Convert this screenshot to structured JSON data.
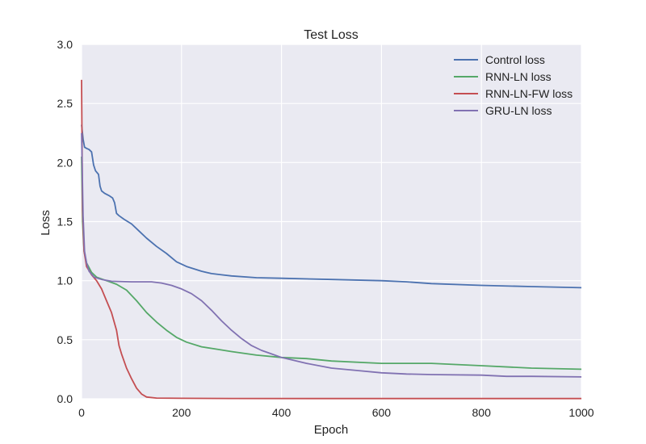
{
  "chart_data": {
    "type": "line",
    "title": "Test Loss",
    "xlabel": "Epoch",
    "ylabel": "Loss",
    "xlim": [
      0,
      1000
    ],
    "ylim": [
      0,
      3.0
    ],
    "xticks": [
      "0",
      "200",
      "400",
      "600",
      "800",
      "1000"
    ],
    "yticks": [
      "0.0",
      "0.5",
      "1.0",
      "1.5",
      "2.0",
      "2.5",
      "3.0"
    ],
    "grid": true,
    "legend_position": "top-right",
    "background": "#eaeaf2",
    "series": [
      {
        "name": "Control loss",
        "color": "#4c72b0",
        "points": [
          [
            0,
            2.32
          ],
          [
            3,
            2.2
          ],
          [
            6,
            2.13
          ],
          [
            10,
            2.12
          ],
          [
            15,
            2.11
          ],
          [
            20,
            2.09
          ],
          [
            24,
            1.98
          ],
          [
            28,
            1.93
          ],
          [
            34,
            1.9
          ],
          [
            37,
            1.8
          ],
          [
            40,
            1.76
          ],
          [
            46,
            1.74
          ],
          [
            55,
            1.72
          ],
          [
            62,
            1.7
          ],
          [
            66,
            1.66
          ],
          [
            70,
            1.57
          ],
          [
            75,
            1.55
          ],
          [
            85,
            1.52
          ],
          [
            100,
            1.48
          ],
          [
            115,
            1.42
          ],
          [
            130,
            1.36
          ],
          [
            150,
            1.29
          ],
          [
            170,
            1.23
          ],
          [
            190,
            1.16
          ],
          [
            210,
            1.12
          ],
          [
            240,
            1.08
          ],
          [
            260,
            1.06
          ],
          [
            280,
            1.05
          ],
          [
            300,
            1.04
          ],
          [
            350,
            1.025
          ],
          [
            400,
            1.02
          ],
          [
            500,
            1.01
          ],
          [
            600,
            1.0
          ],
          [
            650,
            0.99
          ],
          [
            700,
            0.975
          ],
          [
            800,
            0.96
          ],
          [
            900,
            0.95
          ],
          [
            1000,
            0.94
          ]
        ]
      },
      {
        "name": "RNN-LN loss",
        "color": "#55a868",
        "points": [
          [
            0,
            2.05
          ],
          [
            2,
            1.5
          ],
          [
            5,
            1.25
          ],
          [
            10,
            1.15
          ],
          [
            20,
            1.07
          ],
          [
            30,
            1.03
          ],
          [
            50,
            1.0
          ],
          [
            70,
            0.97
          ],
          [
            90,
            0.92
          ],
          [
            110,
            0.83
          ],
          [
            130,
            0.73
          ],
          [
            150,
            0.65
          ],
          [
            170,
            0.58
          ],
          [
            190,
            0.52
          ],
          [
            210,
            0.48
          ],
          [
            240,
            0.44
          ],
          [
            270,
            0.42
          ],
          [
            300,
            0.4
          ],
          [
            350,
            0.37
          ],
          [
            400,
            0.35
          ],
          [
            450,
            0.34
          ],
          [
            500,
            0.32
          ],
          [
            600,
            0.3
          ],
          [
            700,
            0.3
          ],
          [
            800,
            0.28
          ],
          [
            900,
            0.26
          ],
          [
            1000,
            0.25
          ]
        ]
      },
      {
        "name": "RNN-LN-FW loss",
        "color": "#c44e52",
        "points": [
          [
            0,
            2.7
          ],
          [
            2,
            1.6
          ],
          [
            5,
            1.25
          ],
          [
            10,
            1.12
          ],
          [
            20,
            1.05
          ],
          [
            30,
            1.0
          ],
          [
            40,
            0.93
          ],
          [
            50,
            0.83
          ],
          [
            60,
            0.73
          ],
          [
            70,
            0.58
          ],
          [
            75,
            0.45
          ],
          [
            80,
            0.38
          ],
          [
            90,
            0.26
          ],
          [
            100,
            0.17
          ],
          [
            110,
            0.09
          ],
          [
            120,
            0.04
          ],
          [
            130,
            0.015
          ],
          [
            150,
            0.006
          ],
          [
            200,
            0.004
          ],
          [
            300,
            0.003
          ],
          [
            500,
            0.002
          ],
          [
            1000,
            0.002
          ]
        ]
      },
      {
        "name": "GRU-LN loss",
        "color": "#8172b2",
        "points": [
          [
            0,
            2.25
          ],
          [
            3,
            1.55
          ],
          [
            6,
            1.25
          ],
          [
            10,
            1.15
          ],
          [
            15,
            1.08
          ],
          [
            25,
            1.03
          ],
          [
            40,
            1.01
          ],
          [
            60,
            0.995
          ],
          [
            100,
            0.99
          ],
          [
            140,
            0.99
          ],
          [
            160,
            0.98
          ],
          [
            180,
            0.96
          ],
          [
            200,
            0.93
          ],
          [
            220,
            0.89
          ],
          [
            240,
            0.83
          ],
          [
            260,
            0.75
          ],
          [
            280,
            0.66
          ],
          [
            300,
            0.58
          ],
          [
            320,
            0.51
          ],
          [
            340,
            0.45
          ],
          [
            360,
            0.41
          ],
          [
            380,
            0.38
          ],
          [
            400,
            0.35
          ],
          [
            450,
            0.3
          ],
          [
            500,
            0.26
          ],
          [
            550,
            0.24
          ],
          [
            600,
            0.22
          ],
          [
            650,
            0.21
          ],
          [
            700,
            0.205
          ],
          [
            800,
            0.2
          ],
          [
            850,
            0.19
          ],
          [
            900,
            0.19
          ],
          [
            1000,
            0.185
          ]
        ]
      }
    ]
  }
}
